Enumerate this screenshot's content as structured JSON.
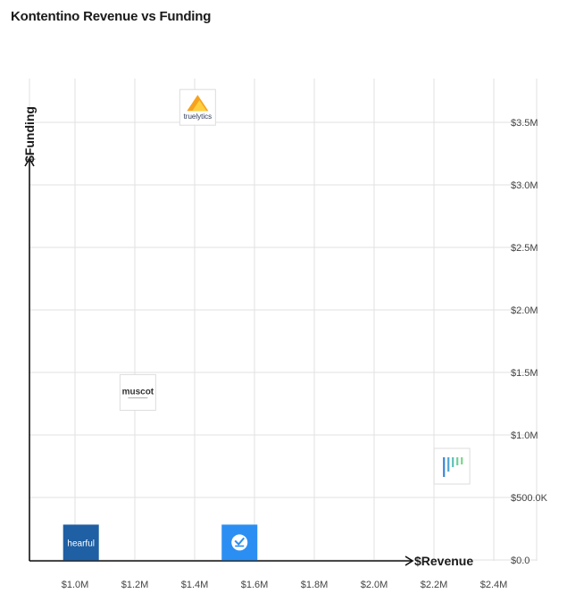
{
  "page": {
    "title": "Kontentino Revenue vs Funding"
  },
  "chart_data": {
    "type": "scatter",
    "title": "Kontentino Revenue vs Funding",
    "xlabel": "$Revenue",
    "ylabel": "$Funding",
    "xlim": [
      0.9,
      2.5
    ],
    "ylim": [
      0,
      3.75
    ],
    "x_ticks": [
      {
        "value": 1.0,
        "label": "$1.0M"
      },
      {
        "value": 1.2,
        "label": "$1.2M"
      },
      {
        "value": 1.4,
        "label": "$1.4M"
      },
      {
        "value": 1.6,
        "label": "$1.6M"
      },
      {
        "value": 1.8,
        "label": "$1.8M"
      },
      {
        "value": 2.0,
        "label": "$2.0M"
      },
      {
        "value": 2.2,
        "label": "$2.2M"
      },
      {
        "value": 2.4,
        "label": "$2.4M"
      }
    ],
    "y_ticks": [
      {
        "value": 0.0,
        "label": "$0.0"
      },
      {
        "value": 0.5,
        "label": "$500.0K"
      },
      {
        "value": 1.0,
        "label": "$1.0M"
      },
      {
        "value": 1.5,
        "label": "$1.5M"
      },
      {
        "value": 2.0,
        "label": "$2.0M"
      },
      {
        "value": 2.5,
        "label": "$2.5M"
      },
      {
        "value": 3.0,
        "label": "$3.0M"
      },
      {
        "value": 3.5,
        "label": "$3.5M"
      }
    ],
    "grid": true,
    "points": [
      {
        "logo": "truelytics-logo",
        "text": "truelytics",
        "x": 1.41,
        "y": 3.62,
        "color": "#f6a21e"
      },
      {
        "logo": "muscot-logo",
        "text": "muscot",
        "x": 1.21,
        "y": 1.34,
        "color": "#333333"
      },
      {
        "logo": "hearful-logo",
        "text": "hearful",
        "x": 1.02,
        "y": 0.14,
        "color": "#1f5fa3"
      },
      {
        "logo": "blue-app-logo",
        "text": "",
        "x": 1.55,
        "y": 0.14,
        "color": "#2b8ef2"
      },
      {
        "logo": "bar-chart-logo",
        "text": "",
        "x": 2.26,
        "y": 0.75,
        "color": "#6fc2b0"
      }
    ]
  }
}
